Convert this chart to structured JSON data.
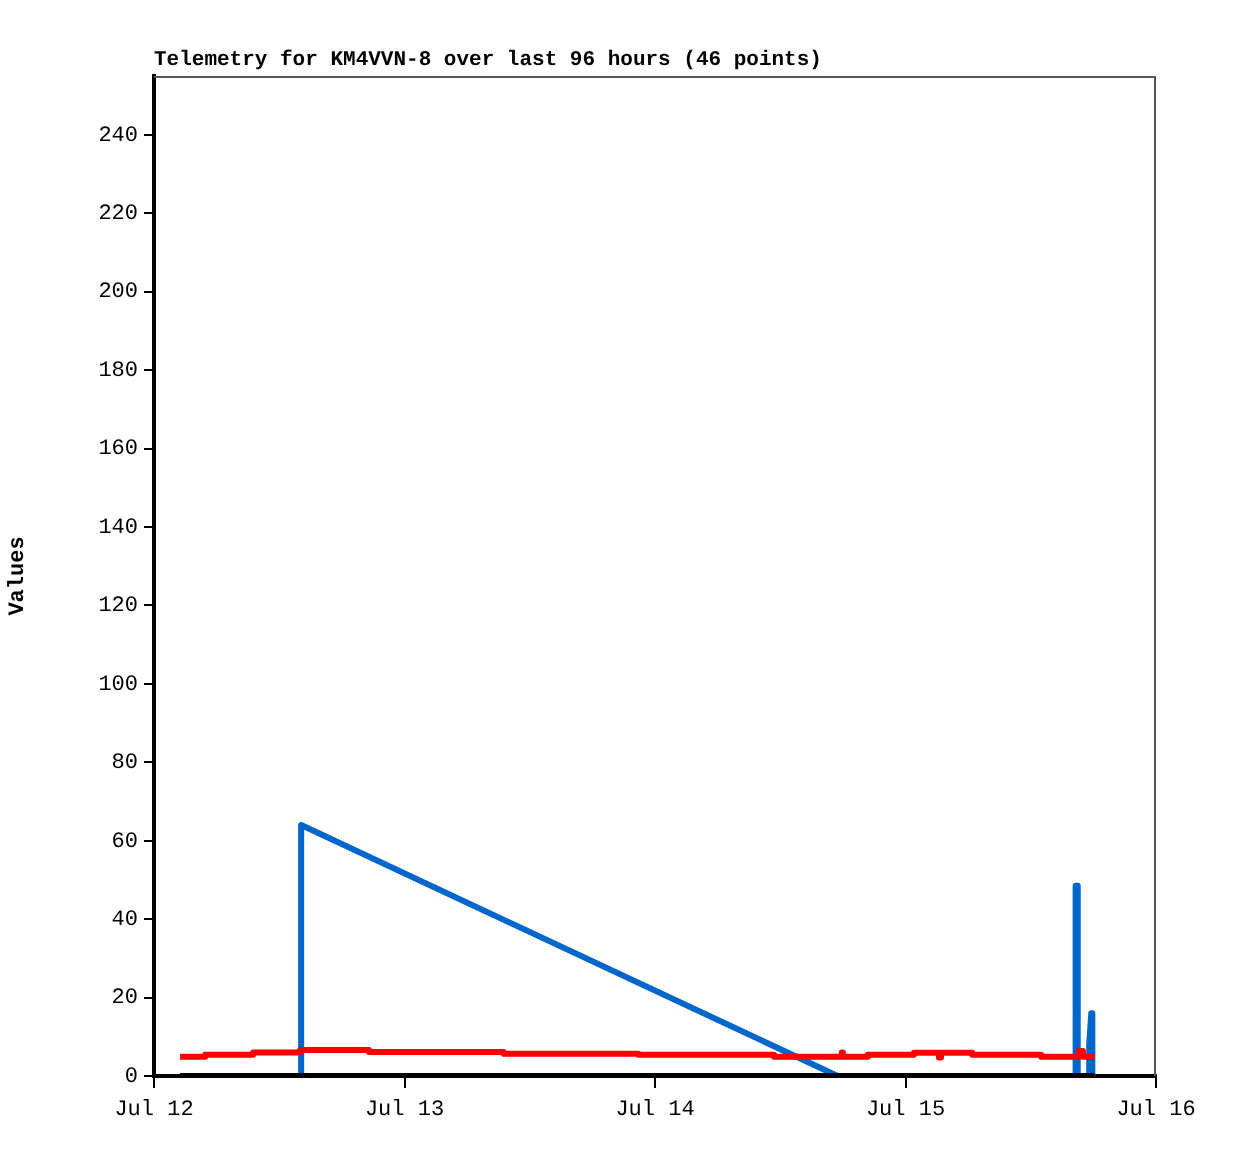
{
  "chart_data": {
    "type": "line",
    "title": "Telemetry for KM4VVN-8 over last 96 hours (46 points)",
    "ylabel": "Values",
    "xlim": [
      "--07-12",
      "--07-16"
    ],
    "xticks": [
      {
        "value": "--07-12",
        "label": "Jul 12"
      },
      {
        "value": "--07-13",
        "label": "Jul 13"
      },
      {
        "value": "--07-14",
        "label": "Jul 14"
      },
      {
        "value": "--07-15",
        "label": "Jul 15"
      },
      {
        "value": "--07-16",
        "label": "Jul 16"
      }
    ],
    "ylim": [
      0,
      255
    ],
    "yticks": [
      0,
      20,
      40,
      60,
      80,
      100,
      120,
      140,
      160,
      180,
      200,
      220,
      240
    ],
    "grid": false,
    "legend": false,
    "series": [
      {
        "type": "step",
        "color": "#ff0000",
        "x": [
          "--07-12T02:30",
          "--07-12T04:54",
          "--07-12T09:30",
          "--07-12T14:00",
          "--07-12T20:36",
          "--07-13T09:30",
          "--07-13T22:24",
          "--07-14T11:24",
          "--07-14T17:54",
          "--07-14T18:00",
          "--07-14T20:24",
          "--07-15T00:48",
          "--07-15T03:12",
          "--07-15T03:24",
          "--07-15T06:24",
          "--07-15T13:00",
          "--07-15T16:36",
          "--07-15T17:00",
          "--07-15T18:06"
        ],
        "values": [
          4.9,
          5.4,
          6.0,
          6.6,
          6.1,
          5.7,
          5.4,
          4.9,
          6.0,
          4.9,
          5.4,
          5.9,
          4.7,
          5.9,
          5.4,
          4.9,
          6.4,
          4.9,
          4.9
        ]
      },
      {
        "type": "step",
        "color": "#000000",
        "x": [
          "--07-12T02:30",
          "--07-15T18:06"
        ],
        "values": [
          0,
          0
        ]
      },
      {
        "type": "line",
        "color": "#0066cc",
        "x": [
          "--07-12T14:00",
          "--07-12T14:06",
          "--07-14T17:30",
          "--07-15T16:12",
          "--07-15T16:18",
          "--07-15T16:30",
          "--07-15T16:30",
          "--07-15T17:36",
          "--07-15T17:36",
          "--07-15T17:48",
          "--07-15T17:54",
          "--07-15T17:54"
        ],
        "values": [
          0,
          64,
          0,
          0,
          48.5,
          48.5,
          0,
          0,
          8,
          16,
          16,
          0
        ]
      }
    ]
  }
}
